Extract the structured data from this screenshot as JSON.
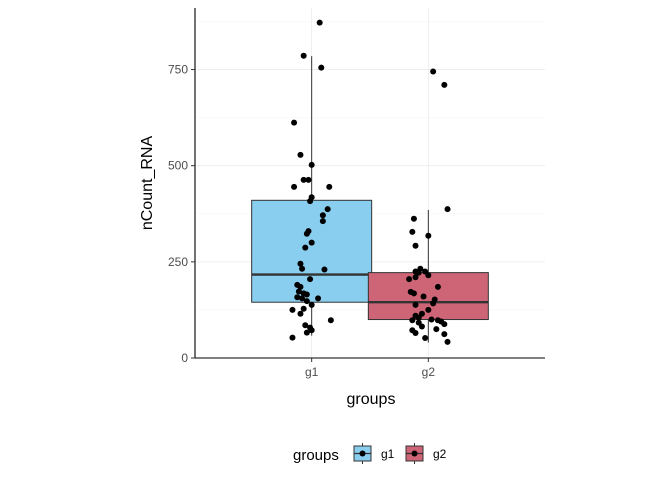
{
  "chart_data": {
    "type": "boxplot",
    "xlabel": "groups",
    "ylabel": "nCount_RNA",
    "ylim": [
      0,
      910
    ],
    "y_ticks": [
      0,
      250,
      500,
      750
    ],
    "y_tick_labels": [
      "0",
      "250",
      "500",
      "750"
    ],
    "grid": true,
    "categories": [
      "g1",
      "g2"
    ],
    "legend": {
      "title": "groups",
      "position": "bottom",
      "entries": [
        "g1",
        "g2"
      ]
    },
    "series": [
      {
        "name": "g1",
        "color": "#89cdef",
        "box": {
          "whisker_low": 58,
          "q1": 145,
          "median": 217,
          "q3": 410,
          "whisker_high": 785
        },
        "points": [
          {
            "dx": 0.05,
            "y": 872
          },
          {
            "dx": -0.05,
            "y": 786
          },
          {
            "dx": 0.06,
            "y": 755
          },
          {
            "dx": -0.11,
            "y": 612
          },
          {
            "dx": -0.07,
            "y": 528
          },
          {
            "dx": 0.0,
            "y": 502
          },
          {
            "dx": -0.05,
            "y": 463
          },
          {
            "dx": -0.02,
            "y": 463
          },
          {
            "dx": -0.11,
            "y": 445
          },
          {
            "dx": 0.11,
            "y": 445
          },
          {
            "dx": 0.0,
            "y": 418
          },
          {
            "dx": -0.01,
            "y": 408
          },
          {
            "dx": 0.1,
            "y": 387
          },
          {
            "dx": 0.07,
            "y": 371
          },
          {
            "dx": 0.07,
            "y": 356
          },
          {
            "dx": -0.02,
            "y": 330
          },
          {
            "dx": -0.03,
            "y": 323
          },
          {
            "dx": 0.0,
            "y": 300
          },
          {
            "dx": -0.04,
            "y": 287
          },
          {
            "dx": -0.07,
            "y": 245
          },
          {
            "dx": -0.06,
            "y": 232
          },
          {
            "dx": 0.08,
            "y": 230
          },
          {
            "dx": -0.01,
            "y": 205
          },
          {
            "dx": -0.09,
            "y": 190
          },
          {
            "dx": -0.07,
            "y": 185
          },
          {
            "dx": -0.08,
            "y": 173
          },
          {
            "dx": -0.05,
            "y": 168
          },
          {
            "dx": -0.03,
            "y": 165
          },
          {
            "dx": -0.09,
            "y": 158
          },
          {
            "dx": -0.06,
            "y": 155
          },
          {
            "dx": 0.04,
            "y": 155
          },
          {
            "dx": -0.03,
            "y": 148
          },
          {
            "dx": 0.0,
            "y": 138
          },
          {
            "dx": -0.05,
            "y": 128
          },
          {
            "dx": -0.12,
            "y": 125
          },
          {
            "dx": -0.07,
            "y": 115
          },
          {
            "dx": 0.12,
            "y": 98
          },
          {
            "dx": -0.04,
            "y": 85
          },
          {
            "dx": -0.01,
            "y": 79
          },
          {
            "dx": 0.0,
            "y": 72
          },
          {
            "dx": -0.03,
            "y": 66
          },
          {
            "dx": -0.12,
            "y": 53
          }
        ]
      },
      {
        "name": "g2",
        "color": "#cd6577",
        "box": {
          "whisker_low": 40,
          "q1": 100,
          "median": 145,
          "q3": 222,
          "whisker_high": 385
        },
        "points": [
          {
            "dx": 0.03,
            "y": 745
          },
          {
            "dx": 0.1,
            "y": 710
          },
          {
            "dx": 0.12,
            "y": 387
          },
          {
            "dx": -0.09,
            "y": 362
          },
          {
            "dx": 0.0,
            "y": 318
          },
          {
            "dx": -0.1,
            "y": 328
          },
          {
            "dx": -0.08,
            "y": 292
          },
          {
            "dx": -0.05,
            "y": 232
          },
          {
            "dx": -0.08,
            "y": 225
          },
          {
            "dx": -0.06,
            "y": 222
          },
          {
            "dx": -0.02,
            "y": 225
          },
          {
            "dx": 0.0,
            "y": 215
          },
          {
            "dx": -0.12,
            "y": 205
          },
          {
            "dx": -0.08,
            "y": 210
          },
          {
            "dx": 0.06,
            "y": 185
          },
          {
            "dx": -0.11,
            "y": 172
          },
          {
            "dx": -0.09,
            "y": 168
          },
          {
            "dx": -0.03,
            "y": 160
          },
          {
            "dx": 0.04,
            "y": 152
          },
          {
            "dx": -0.08,
            "y": 138
          },
          {
            "dx": 0.03,
            "y": 142
          },
          {
            "dx": 0.0,
            "y": 125
          },
          {
            "dx": -0.04,
            "y": 115
          },
          {
            "dx": -0.08,
            "y": 110
          },
          {
            "dx": -0.06,
            "y": 105
          },
          {
            "dx": 0.02,
            "y": 100
          },
          {
            "dx": -0.1,
            "y": 98
          },
          {
            "dx": 0.06,
            "y": 98
          },
          {
            "dx": 0.08,
            "y": 95
          },
          {
            "dx": -0.06,
            "y": 92
          },
          {
            "dx": 0.1,
            "y": 88
          },
          {
            "dx": -0.04,
            "y": 82
          },
          {
            "dx": 0.05,
            "y": 75
          },
          {
            "dx": -0.1,
            "y": 72
          },
          {
            "dx": -0.08,
            "y": 65
          },
          {
            "dx": 0.1,
            "y": 62
          },
          {
            "dx": -0.02,
            "y": 52
          },
          {
            "dx": 0.12,
            "y": 42
          }
        ]
      }
    ]
  }
}
